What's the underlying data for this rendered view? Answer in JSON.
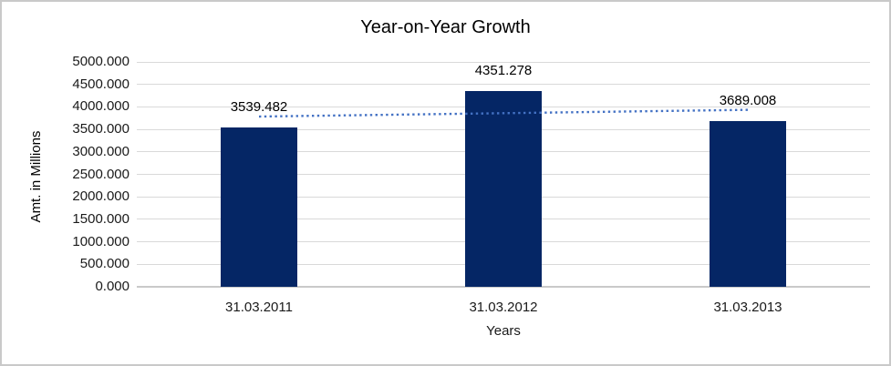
{
  "chart_data": {
    "type": "bar",
    "title": "Year-on-Year Growth",
    "xlabel": "Years",
    "ylabel": "Amt. in Millions",
    "categories": [
      "31.03.2011",
      "31.03.2012",
      "31.03.2013"
    ],
    "values": [
      3539.482,
      4351.278,
      3689.008
    ],
    "data_labels": [
      "3539.482",
      "4351.278",
      "3689.008"
    ],
    "ylim": [
      0,
      5000
    ],
    "ytick_step": 500,
    "ytick_labels": [
      "0.000",
      "500.000",
      "1000.000",
      "1500.000",
      "2000.000",
      "2500.000",
      "3000.000",
      "3500.000",
      "4000.000",
      "4500.000",
      "5000.000"
    ],
    "grid": true,
    "legend": "none",
    "bar_color": "#052665",
    "gridline_color": "#d9d9d9",
    "axis_line_color": "#c9c9c9",
    "background": "#ffffff",
    "border_color": "#c9c9c9",
    "text_color": "#1a1a1a",
    "trendline": {
      "type": "linear",
      "style": "dotted",
      "color": "#4472c4",
      "values": [
        3785.16,
        3859.92,
        3934.69
      ]
    }
  }
}
